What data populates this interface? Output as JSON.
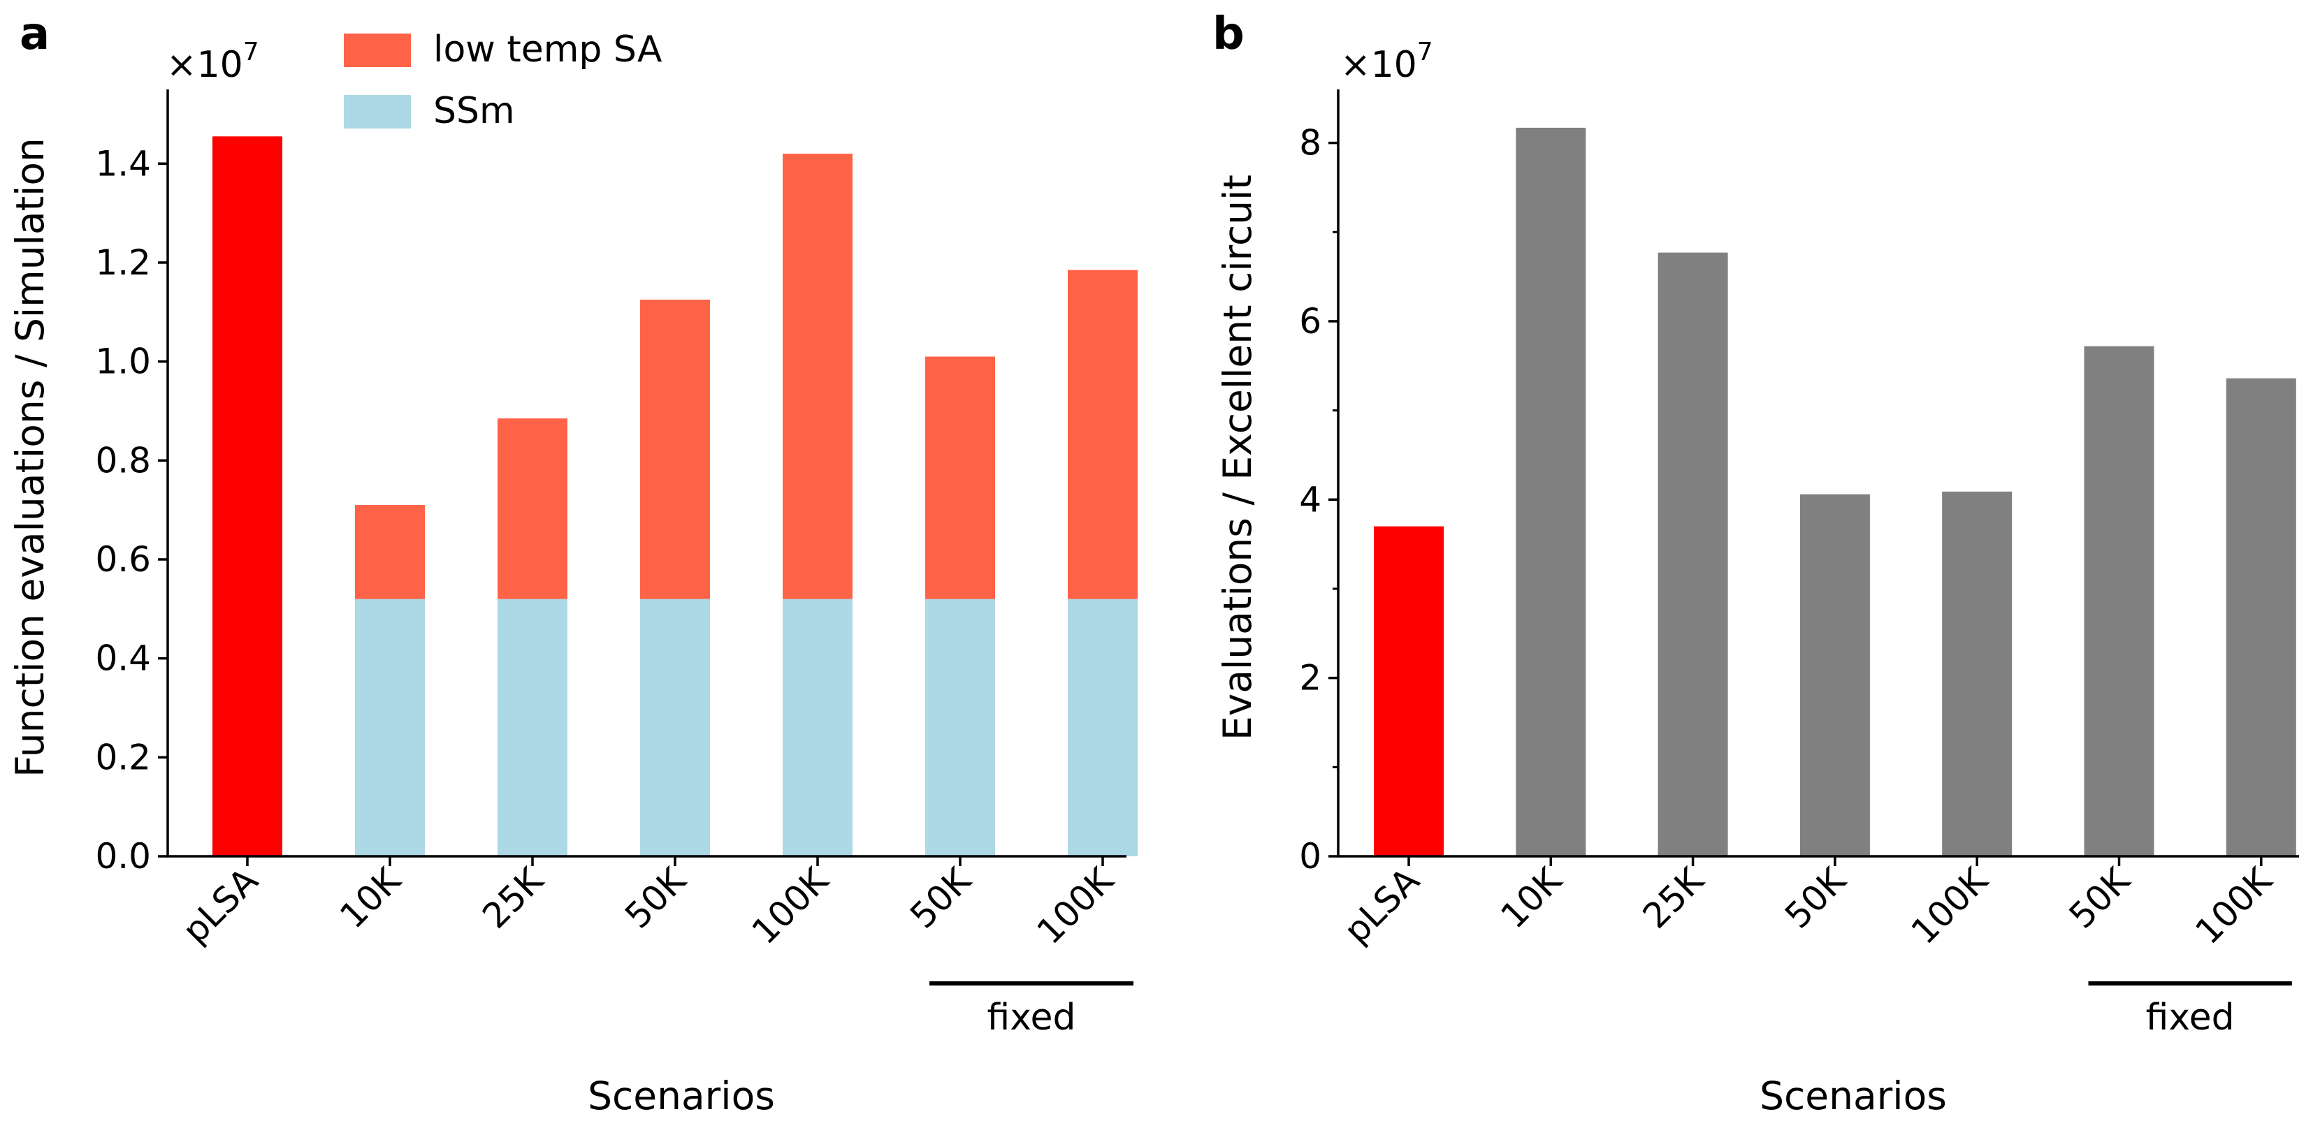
{
  "chart_data": [
    {
      "type": "bar",
      "stacked": true,
      "panel": "a",
      "categories": [
        "pLSA",
        "10K",
        "25K",
        "50K",
        "100K",
        "50K",
        "100K"
      ],
      "group_label": "fixed",
      "grouped_categories": [
        5,
        6
      ],
      "series": [
        {
          "name": "SSm",
          "color": "#add8e6",
          "values": [
            null,
            0.52,
            0.52,
            0.52,
            0.52,
            0.52,
            0.52
          ]
        },
        {
          "name": "low temp SA",
          "color": "#ff6347",
          "values": [
            null,
            0.19,
            0.365,
            0.605,
            0.9,
            0.49,
            0.665
          ]
        }
      ],
      "single_bars": [
        {
          "category_index": 0,
          "value": 1.455,
          "color": "#ff0000"
        }
      ],
      "xlabel": "Scenarios",
      "ylabel": "Function evaluations / Simulation",
      "ylim": [
        0,
        1.55
      ],
      "yticks": [
        0.0,
        0.2,
        0.4,
        0.6,
        0.8,
        1.0,
        1.2,
        1.4
      ],
      "ytick_labels": [
        "0.0",
        "0.2",
        "0.4",
        "0.6",
        "0.8",
        "1.0",
        "1.2",
        "1.4"
      ],
      "scale_label": "×10",
      "scale_exponent": "7",
      "legend_placement": "top-center",
      "grid": false
    },
    {
      "type": "bar",
      "panel": "b",
      "categories": [
        "pLSA",
        "10K",
        "25K",
        "50K",
        "100K",
        "50K",
        "100K"
      ],
      "group_label": "fixed",
      "grouped_categories": [
        5,
        6
      ],
      "values": [
        3.7,
        8.17,
        6.77,
        4.06,
        4.09,
        5.72,
        5.36
      ],
      "colors": [
        "#ff0000",
        "#808080",
        "#808080",
        "#808080",
        "#808080",
        "#808080",
        "#808080"
      ],
      "xlabel": "Scenarios",
      "ylabel": "Evaluations / Excellent  circuit",
      "ylim": [
        0,
        8.6
      ],
      "yticks": [
        0,
        2,
        4,
        6,
        8
      ],
      "ytick_labels": [
        "0",
        "2",
        "4",
        "6",
        "8"
      ],
      "yminor_ticks": [
        1,
        3,
        5,
        7
      ],
      "scale_label": "×10",
      "scale_exponent": "7",
      "grid": false
    }
  ]
}
